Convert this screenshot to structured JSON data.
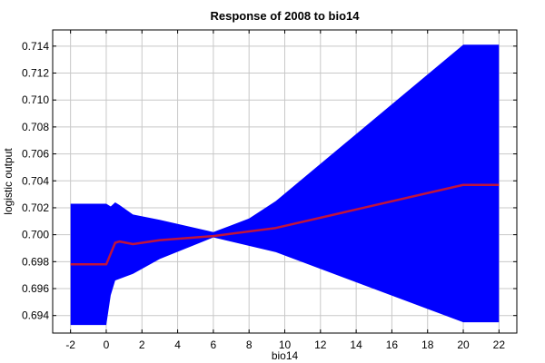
{
  "chart_data": {
    "type": "line",
    "title": "Response of 2008 to bio14",
    "xlabel": "bio14",
    "ylabel": "logistic output",
    "xlim": [
      -3,
      23
    ],
    "ylim": [
      0.6927,
      0.7152
    ],
    "grid": true,
    "x_ticks": [
      -2,
      0,
      2,
      4,
      6,
      8,
      10,
      12,
      14,
      16,
      18,
      20,
      22
    ],
    "y_ticks": [
      0.694,
      0.696,
      0.698,
      0.7,
      0.702,
      0.704,
      0.706,
      0.708,
      0.71,
      0.712,
      0.714
    ],
    "x_tick_labels": [
      "-2",
      "0",
      "2",
      "4",
      "6",
      "8",
      "10",
      "12",
      "14",
      "16",
      "18",
      "20",
      "22"
    ],
    "y_tick_labels": [
      "0.694",
      "0.696",
      "0.698",
      "0.700",
      "0.702",
      "0.704",
      "0.706",
      "0.708",
      "0.710",
      "0.712",
      "0.714"
    ],
    "colors": {
      "band": "#0000ff",
      "line": "#c0143c",
      "grid": "#c8c8c8"
    },
    "band": {
      "upper": [
        [
          -2,
          0.7023
        ],
        [
          0,
          0.7023
        ],
        [
          0.25,
          0.7021
        ],
        [
          0.5,
          0.7024
        ],
        [
          0.75,
          0.7022
        ],
        [
          1.5,
          0.7015
        ],
        [
          3,
          0.7011
        ],
        [
          6,
          0.7002
        ],
        [
          8,
          0.7012
        ],
        [
          9.5,
          0.7025
        ],
        [
          20,
          0.7141
        ],
        [
          22,
          0.7141
        ]
      ],
      "lower": [
        [
          -2,
          0.6933
        ],
        [
          0,
          0.6933
        ],
        [
          0.25,
          0.6955
        ],
        [
          0.5,
          0.6966
        ],
        [
          1.5,
          0.6971
        ],
        [
          3,
          0.6982
        ],
        [
          6,
          0.6998
        ],
        [
          9.5,
          0.6987
        ],
        [
          20,
          0.6935
        ],
        [
          22,
          0.6935
        ]
      ]
    },
    "series": [
      {
        "values": [
          [
            -2,
            0.6978
          ],
          [
            0,
            0.6978
          ],
          [
            0.5,
            0.6994
          ],
          [
            0.75,
            0.6995
          ],
          [
            1.5,
            0.6993
          ],
          [
            3,
            0.6996
          ],
          [
            6,
            0.6999
          ],
          [
            9.5,
            0.7005
          ],
          [
            20,
            0.7037
          ],
          [
            22,
            0.7037
          ]
        ]
      }
    ]
  }
}
